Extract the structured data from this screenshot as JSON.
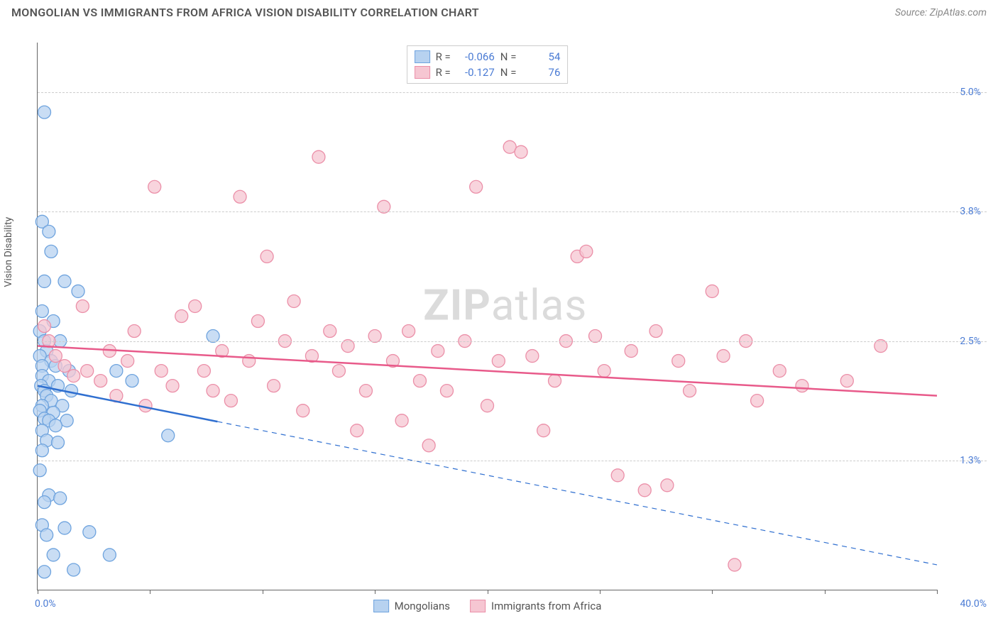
{
  "title": "MONGOLIAN VS IMMIGRANTS FROM AFRICA VISION DISABILITY CORRELATION CHART",
  "source": "Source: ZipAtlas.com",
  "watermark_bold": "ZIP",
  "watermark_light": "atlas",
  "y_axis_label": "Vision Disability",
  "x_min_label": "0.0%",
  "x_max_label": "40.0%",
  "chart": {
    "type": "scatter",
    "xlim": [
      0,
      40
    ],
    "ylim": [
      0,
      5.5
    ],
    "y_ticks": [
      1.3,
      2.5,
      3.8,
      5.0
    ],
    "y_tick_labels": [
      "1.3%",
      "2.5%",
      "3.8%",
      "5.0%"
    ],
    "x_ticks": [
      0,
      5,
      10,
      15,
      20,
      25,
      30,
      35,
      40
    ],
    "background_color": "#ffffff",
    "grid_color": "#cccccc",
    "grid_dash": "6,5",
    "series": [
      {
        "name": "Mongolians",
        "legend_label": "Mongolians",
        "R": "-0.066",
        "N": "54",
        "marker_fill": "#b7d2f0",
        "marker_stroke": "#6ea3de",
        "marker_radius": 9,
        "line_color": "#2f6fd0",
        "line_width": 2.5,
        "line_solid_xmax": 8,
        "line_dash": "7,6",
        "regression": {
          "x1": 0,
          "y1": 2.05,
          "x2": 40,
          "y2": 0.25
        },
        "points": [
          [
            0.3,
            4.8
          ],
          [
            0.2,
            3.7
          ],
          [
            0.5,
            3.6
          ],
          [
            0.6,
            3.4
          ],
          [
            1.2,
            3.1
          ],
          [
            0.3,
            3.1
          ],
          [
            1.8,
            3.0
          ],
          [
            0.2,
            2.8
          ],
          [
            0.7,
            2.7
          ],
          [
            0.1,
            2.6
          ],
          [
            0.3,
            2.5
          ],
          [
            1.0,
            2.5
          ],
          [
            0.4,
            2.4
          ],
          [
            0.1,
            2.35
          ],
          [
            0.6,
            2.3
          ],
          [
            0.2,
            2.25
          ],
          [
            0.8,
            2.25
          ],
          [
            1.4,
            2.2
          ],
          [
            0.2,
            2.15
          ],
          [
            0.5,
            2.1
          ],
          [
            0.15,
            2.05
          ],
          [
            0.9,
            2.05
          ],
          [
            0.3,
            2.0
          ],
          [
            1.5,
            2.0
          ],
          [
            0.4,
            1.95
          ],
          [
            0.6,
            1.9
          ],
          [
            0.2,
            1.85
          ],
          [
            1.1,
            1.85
          ],
          [
            0.1,
            1.8
          ],
          [
            0.7,
            1.78
          ],
          [
            0.3,
            1.72
          ],
          [
            0.5,
            1.7
          ],
          [
            1.3,
            1.7
          ],
          [
            0.8,
            1.65
          ],
          [
            0.2,
            1.6
          ],
          [
            5.8,
            1.55
          ],
          [
            0.4,
            1.5
          ],
          [
            0.9,
            1.48
          ],
          [
            0.2,
            1.4
          ],
          [
            0.1,
            1.2
          ],
          [
            0.5,
            0.95
          ],
          [
            1.0,
            0.92
          ],
          [
            0.3,
            0.88
          ],
          [
            0.2,
            0.65
          ],
          [
            1.2,
            0.62
          ],
          [
            2.3,
            0.58
          ],
          [
            0.4,
            0.55
          ],
          [
            0.7,
            0.35
          ],
          [
            1.6,
            0.2
          ],
          [
            3.2,
            0.35
          ],
          [
            0.3,
            0.18
          ],
          [
            7.8,
            2.55
          ],
          [
            3.5,
            2.2
          ],
          [
            4.2,
            2.1
          ]
        ]
      },
      {
        "name": "Immigrants from Africa",
        "legend_label": "Immigrants from Africa",
        "R": "-0.127",
        "N": "76",
        "marker_fill": "#f6c6d2",
        "marker_stroke": "#eb8fa8",
        "marker_radius": 9,
        "line_color": "#e85a8a",
        "line_width": 2.5,
        "line_solid_xmax": 40,
        "line_dash": null,
        "regression": {
          "x1": 0,
          "y1": 2.45,
          "x2": 40,
          "y2": 1.95
        },
        "points": [
          [
            0.3,
            2.65
          ],
          [
            0.5,
            2.5
          ],
          [
            0.8,
            2.35
          ],
          [
            1.2,
            2.25
          ],
          [
            1.6,
            2.15
          ],
          [
            2.2,
            2.2
          ],
          [
            2.8,
            2.1
          ],
          [
            3.2,
            2.4
          ],
          [
            3.5,
            1.95
          ],
          [
            4.0,
            2.3
          ],
          [
            4.3,
            2.6
          ],
          [
            4.8,
            1.85
          ],
          [
            5.2,
            4.05
          ],
          [
            5.5,
            2.2
          ],
          [
            6.0,
            2.05
          ],
          [
            6.4,
            2.75
          ],
          [
            7.0,
            2.85
          ],
          [
            7.4,
            2.2
          ],
          [
            7.8,
            2.0
          ],
          [
            8.2,
            2.4
          ],
          [
            8.6,
            1.9
          ],
          [
            9.0,
            3.95
          ],
          [
            9.4,
            2.3
          ],
          [
            9.8,
            2.7
          ],
          [
            10.2,
            3.35
          ],
          [
            10.5,
            2.05
          ],
          [
            11.0,
            2.5
          ],
          [
            11.4,
            2.9
          ],
          [
            11.8,
            1.8
          ],
          [
            12.2,
            2.35
          ],
          [
            12.5,
            4.35
          ],
          [
            13.0,
            2.6
          ],
          [
            13.4,
            2.2
          ],
          [
            13.8,
            2.45
          ],
          [
            14.2,
            1.6
          ],
          [
            14.6,
            2.0
          ],
          [
            15.0,
            2.55
          ],
          [
            15.4,
            3.85
          ],
          [
            15.8,
            2.3
          ],
          [
            16.2,
            1.7
          ],
          [
            16.5,
            2.6
          ],
          [
            17.0,
            2.1
          ],
          [
            17.4,
            1.45
          ],
          [
            17.8,
            2.4
          ],
          [
            18.2,
            2.0
          ],
          [
            19.0,
            2.5
          ],
          [
            19.5,
            4.05
          ],
          [
            20.0,
            1.85
          ],
          [
            20.5,
            2.3
          ],
          [
            21.0,
            4.45
          ],
          [
            21.5,
            4.4
          ],
          [
            22.0,
            2.35
          ],
          [
            22.5,
            1.6
          ],
          [
            23.0,
            2.1
          ],
          [
            23.5,
            2.5
          ],
          [
            24.0,
            3.35
          ],
          [
            24.4,
            3.4
          ],
          [
            24.8,
            2.55
          ],
          [
            25.2,
            2.2
          ],
          [
            25.8,
            1.15
          ],
          [
            26.4,
            2.4
          ],
          [
            27.0,
            1.0
          ],
          [
            27.5,
            2.6
          ],
          [
            28.0,
            1.05
          ],
          [
            28.5,
            2.3
          ],
          [
            29.0,
            2.0
          ],
          [
            30.0,
            3.0
          ],
          [
            30.5,
            2.35
          ],
          [
            31.0,
            0.25
          ],
          [
            31.5,
            2.5
          ],
          [
            32.0,
            1.9
          ],
          [
            33.0,
            2.2
          ],
          [
            34.0,
            2.05
          ],
          [
            37.5,
            2.45
          ],
          [
            36.0,
            2.1
          ],
          [
            2.0,
            2.85
          ]
        ]
      }
    ]
  },
  "legend_top": {
    "R_label": "R =",
    "N_label": "N ="
  }
}
